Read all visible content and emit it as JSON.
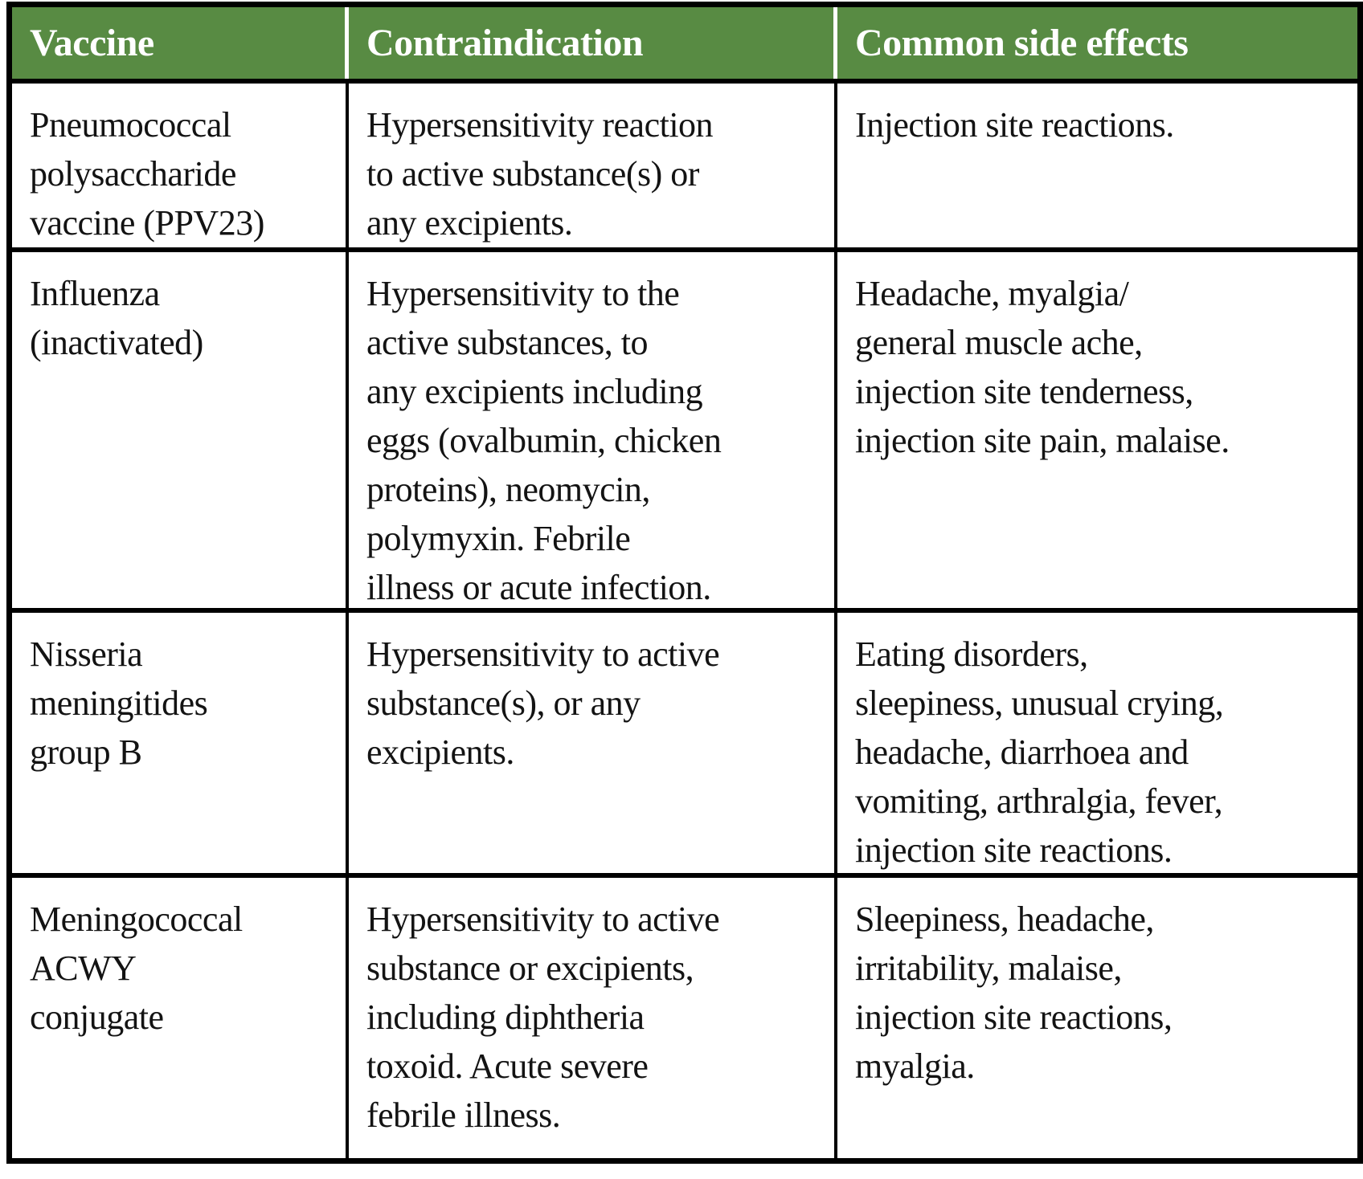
{
  "table": {
    "columns": [
      {
        "label": "Vaccine"
      },
      {
        "label": "Contraindication"
      },
      {
        "label": "Common side effects"
      }
    ],
    "rows": [
      {
        "vaccine": "Pneumococcal\npolysaccharide\nvaccine (PPV23)",
        "contraindication": "Hypersensitivity reaction\nto active substance(s) or\nany excipients.",
        "side_effects": "Injection site reactions."
      },
      {
        "vaccine": "Influenza\n(inactivated)",
        "contraindication": "Hypersensitivity to the\nactive substances, to\nany excipients including\neggs (ovalbumin, chicken\nproteins), neomycin,\npolymyxin. Febrile\nillness or acute infection.",
        "side_effects": "Headache, myalgia/\ngeneral muscle ache,\ninjection site tenderness,\ninjection site pain, malaise."
      },
      {
        "vaccine": "Nisseria\nmeningitides\ngroup B",
        "contraindication": "Hypersensitivity to active\nsubstance(s), or any\nexcipients.",
        "side_effects": "Eating disorders,\nsleepiness, unusual crying,\nheadache, diarrhoea and\nvomiting, arthralgia, fever,\ninjection site reactions."
      },
      {
        "vaccine": "Meningococcal\nACWY\nconjugate",
        "contraindication": "Hypersensitivity to active\nsubstance or excipients,\nincluding diphtheria\ntoxoid. Acute severe\nfebrile illness.",
        "side_effects": "Sleepiness, headache,\nirritability, malaise,\ninjection site reactions,\nmyalgia."
      }
    ],
    "colors": {
      "header_bg": "#588b43",
      "header_text": "#ffffff",
      "border": "#000000",
      "body_text": "#131313",
      "body_bg": "#ffffff"
    }
  }
}
